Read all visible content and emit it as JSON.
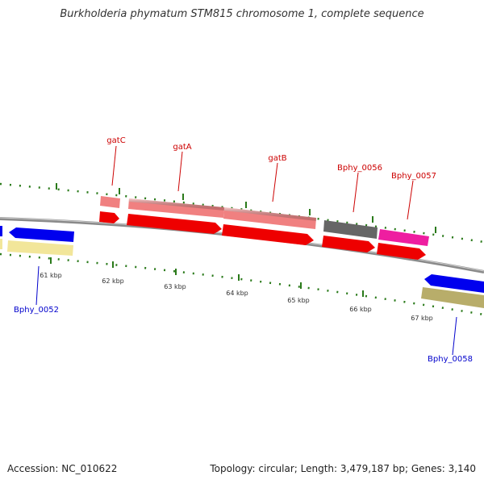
{
  "title": "Burkholderia phymatum STM815 chromosome 1, complete sequence",
  "footer": {
    "accession": "Accession: NC_010622",
    "summary": "Topology: circular; Length: 3,479,187 bp; Genes: 3,140"
  },
  "colors": {
    "backbone": "#888888",
    "tick": "#2a7a1a",
    "gene_label_red": "#cc0000",
    "gene_label_blue": "#0000cc"
  },
  "scale_labels": [
    "61 kbp",
    "62 kbp",
    "63 kbp",
    "64 kbp",
    "65 kbp",
    "66 kbp",
    "67 kbp"
  ],
  "gene_labels": {
    "gatC": "gatC",
    "gatA": "gatA",
    "gatB": "gatB",
    "bphy_0056": "Bphy_0056",
    "bphy_0057": "Bphy_0057",
    "bphy_0052": "Bphy_0052",
    "bphy_0058": "Bphy_0058"
  }
}
